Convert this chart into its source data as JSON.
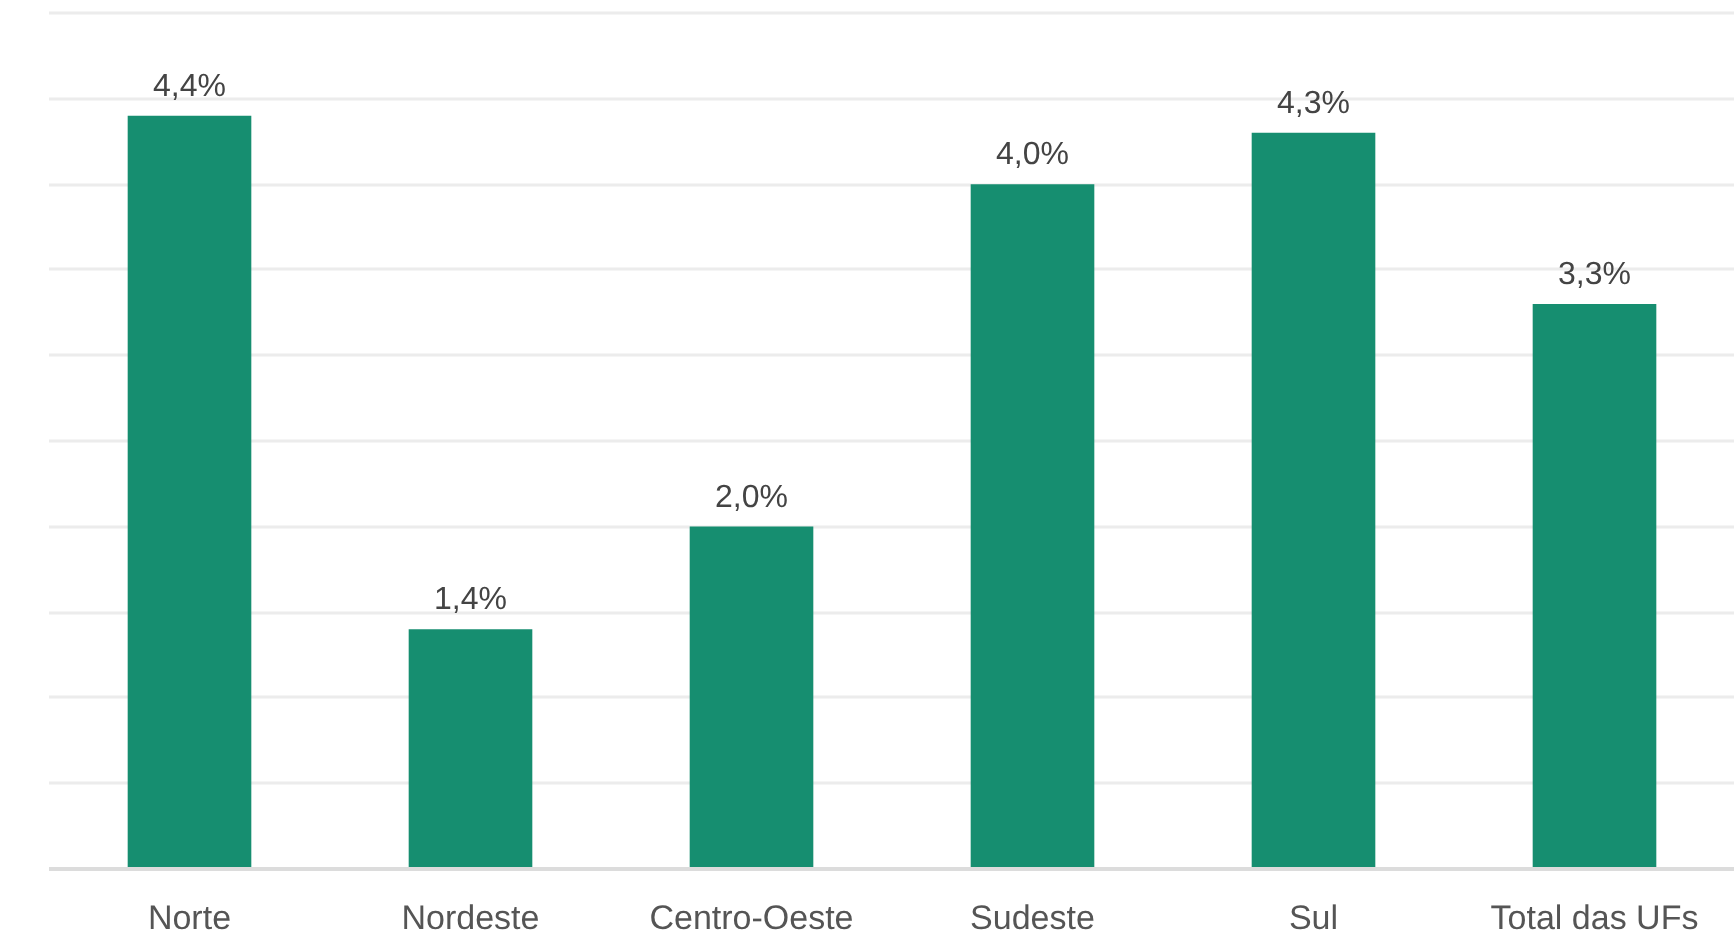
{
  "chart_data": {
    "type": "bar",
    "categories": [
      "Norte",
      "Nordeste",
      "Centro-Oeste",
      "Sudeste",
      "Sul",
      "Total das UFs"
    ],
    "values": [
      4.4,
      1.4,
      2.0,
      4.0,
      4.3,
      3.3
    ],
    "value_labels": [
      "4,4%",
      "1,4%",
      "2,0%",
      "4,0%",
      "4,3%",
      "3,3%"
    ],
    "color": "#168e70",
    "ylim": [
      0,
      5
    ],
    "yticks": [
      {
        "value": 0,
        "label": null
      },
      {
        "value": 0.5,
        "label": null
      },
      {
        "value": 1,
        "label": null
      },
      {
        "value": 1.5,
        "label": null
      },
      {
        "value": 2,
        "label": null
      },
      {
        "value": 2.5,
        "label": null
      },
      {
        "value": 3,
        "label": null
      },
      {
        "value": 3.5,
        "label": null
      },
      {
        "value": 4,
        "label": null
      },
      {
        "value": 4.5,
        "label": null
      },
      {
        "value": 5,
        "label": null
      }
    ],
    "grid": "y",
    "tick_labels": "x"
  }
}
